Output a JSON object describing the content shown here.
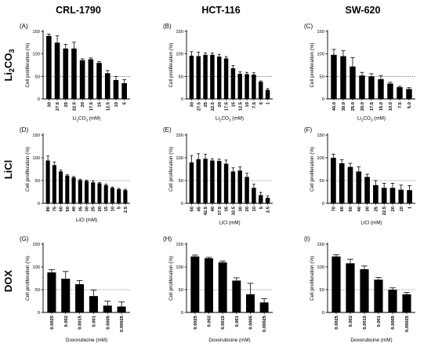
{
  "column_titles": [
    "CRL-1790",
    "HCT-116",
    "SW-620"
  ],
  "row_titles": [
    "Li2CO3",
    "LiCl",
    "DOX"
  ],
  "chart_data": [
    {
      "panel": "(A)",
      "type": "bar",
      "row": 0,
      "col": 0,
      "ylabel": "Cell proliferation (%)",
      "xlabel": "Li2CO3 (mM)",
      "ylim": [
        0,
        150
      ],
      "yticks": [
        0,
        50,
        100,
        150
      ],
      "threshold": 50,
      "categories": [
        "30",
        "27.5",
        "25",
        "22.5",
        "20",
        "17.5",
        "15",
        "12.5",
        "10",
        "5"
      ],
      "values": [
        140,
        125,
        112,
        112,
        86,
        88,
        80,
        57,
        42,
        35
      ],
      "errors": [
        4,
        15,
        9,
        14,
        3,
        3,
        3,
        6,
        8,
        8
      ]
    },
    {
      "panel": "(B)",
      "type": "bar",
      "row": 0,
      "col": 1,
      "ylabel": "Cell proliferation (%)",
      "xlabel": "Li2CO3 (mM)",
      "ylim": [
        0,
        150
      ],
      "yticks": [
        0,
        50,
        100,
        150
      ],
      "threshold": 50,
      "categories": [
        "30",
        "27.5",
        "25",
        "22.5",
        "20",
        "17.5",
        "15",
        "12.5",
        "10",
        "7.5",
        "5",
        "1"
      ],
      "values": [
        96,
        95,
        98,
        98,
        94,
        90,
        68,
        56,
        55,
        54,
        38,
        20
      ],
      "errors": [
        9,
        9,
        4,
        4,
        5,
        4,
        6,
        4,
        4,
        4,
        2,
        3
      ]
    },
    {
      "panel": "(C)",
      "type": "bar",
      "row": 0,
      "col": 2,
      "ylabel": "Cell proliferation (%)",
      "xlabel": "Li2CO3 (mM)",
      "ylim": [
        0,
        150
      ],
      "yticks": [
        0,
        50,
        100,
        150
      ],
      "threshold": 50,
      "categories": [
        "40.0",
        "30.0",
        "25.0",
        "20.0",
        "17.5",
        "15.0",
        "10.0",
        "7.5",
        "5.0"
      ],
      "values": [
        98,
        95,
        72,
        52,
        50,
        44,
        34,
        26,
        22
      ],
      "errors": [
        12,
        12,
        20,
        7,
        6,
        8,
        3,
        2,
        3
      ]
    },
    {
      "panel": "(D)",
      "type": "bar",
      "row": 1,
      "col": 0,
      "ylabel": "Cell proliferation (%)",
      "xlabel": "LiCl (mM)",
      "ylim": [
        0,
        150
      ],
      "yticks": [
        0,
        50,
        100,
        150
      ],
      "threshold": 50,
      "categories": [
        "80",
        "75",
        "60",
        "50",
        "40",
        "35",
        "30",
        "25",
        "20",
        "15",
        "10",
        "5",
        "2.5"
      ],
      "values": [
        94,
        84,
        70,
        61,
        57,
        51,
        49,
        46,
        44,
        40,
        34,
        31,
        29
      ],
      "errors": [
        10,
        7,
        3,
        2,
        2,
        2,
        2,
        3,
        2,
        2,
        2,
        2,
        2
      ]
    },
    {
      "panel": "(E)",
      "type": "bar",
      "row": 1,
      "col": 1,
      "ylabel": "Cell proliferation (%)",
      "xlabel": "LiCl (mM)",
      "ylim": [
        0,
        150
      ],
      "yticks": [
        0,
        50,
        100,
        150
      ],
      "threshold": 50,
      "categories": [
        "50",
        "45",
        "42.5",
        "40",
        "37.5",
        "35",
        "32.5",
        "30",
        "20",
        "10",
        "5",
        "2.5"
      ],
      "values": [
        90,
        97,
        98,
        94,
        93,
        87,
        70,
        72,
        58,
        34,
        18,
        12
      ],
      "errors": [
        15,
        12,
        10,
        4,
        4,
        8,
        8,
        8,
        8,
        8,
        6,
        4
      ]
    },
    {
      "panel": "(F)",
      "type": "bar",
      "row": 1,
      "col": 2,
      "ylabel": "Cell proliferation (%)",
      "xlabel": "LiCl (mM)",
      "ylim": [
        0,
        150
      ],
      "yticks": [
        0,
        50,
        100,
        150
      ],
      "threshold": 50,
      "categories": [
        "70",
        "60",
        "50",
        "40",
        "30",
        "25",
        "22.5",
        "20",
        "10",
        "1"
      ],
      "values": [
        100,
        88,
        80,
        70,
        58,
        40,
        34,
        34,
        30,
        29
      ],
      "errors": [
        8,
        8,
        8,
        10,
        6,
        10,
        10,
        10,
        10,
        10
      ]
    },
    {
      "panel": "(G)",
      "type": "bar",
      "row": 2,
      "col": 0,
      "ylabel": "Cell proliferation (%)",
      "xlabel": "Doxorubicine (mM)",
      "ylim": [
        0,
        150
      ],
      "yticks": [
        0,
        50,
        100,
        150
      ],
      "threshold": 50,
      "categories": [
        "0.0025",
        "0.002",
        "0.0015",
        "0.001",
        "0.0005",
        "0.00025"
      ],
      "values": [
        88,
        74,
        62,
        36,
        15,
        13
      ],
      "errors": [
        6,
        16,
        8,
        13,
        10,
        10
      ]
    },
    {
      "panel": "(H)",
      "type": "bar",
      "row": 2,
      "col": 1,
      "ylabel": "Cell proliferation (%)",
      "xlabel": "Doxorubicine (mM)",
      "ylim": [
        0,
        150
      ],
      "yticks": [
        0,
        50,
        100,
        150
      ],
      "threshold": 50,
      "categories": [
        "0.0025",
        "0.002",
        "0.0015",
        "0.001",
        "0.0005",
        "0.00025"
      ],
      "values": [
        123,
        119,
        110,
        70,
        40,
        22
      ],
      "errors": [
        3,
        2,
        3,
        6,
        24,
        8
      ]
    },
    {
      "panel": "(I)",
      "type": "bar",
      "row": 2,
      "col": 2,
      "ylabel": "Cell proliferation (%)",
      "xlabel": "Doxorubicine (mM)",
      "ylim": [
        0,
        150
      ],
      "yticks": [
        0,
        50,
        100,
        150
      ],
      "threshold": 50,
      "categories": [
        "0.0025",
        "0.002",
        "0.0015",
        "0.001",
        "0.0005",
        "0.00025"
      ],
      "values": [
        123,
        108,
        95,
        72,
        50,
        40
      ],
      "errors": [
        4,
        9,
        7,
        5,
        4,
        4
      ]
    }
  ]
}
